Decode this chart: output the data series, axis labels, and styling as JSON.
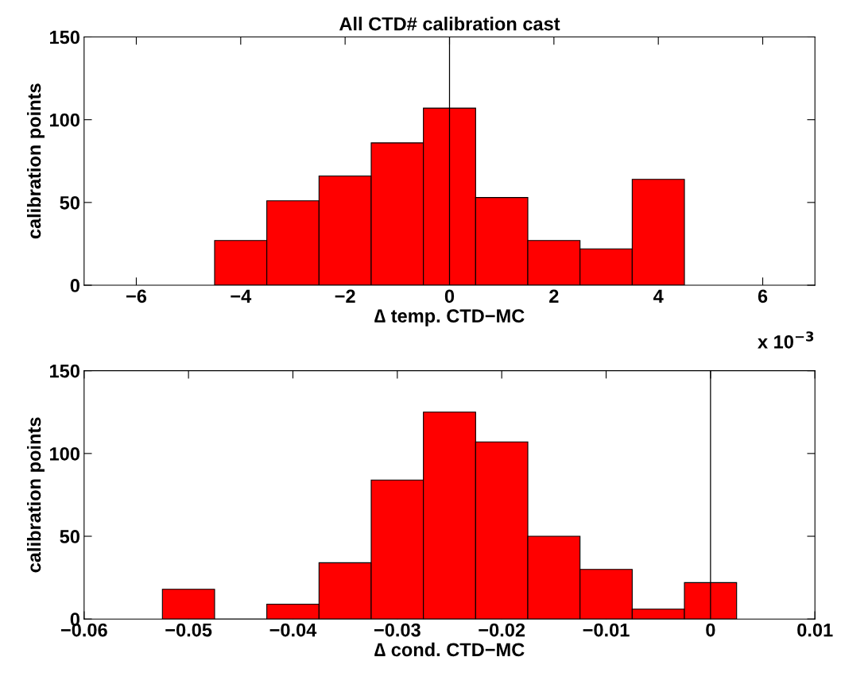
{
  "chart_data": [
    {
      "type": "histogram",
      "title": "All CTD# calibration cast",
      "xlabel": "∆ temp. CTD−MC",
      "ylabel": "calibration points",
      "color": "#ff0000",
      "bins": [
        -4.5,
        -3.5,
        -2.5,
        -1.5,
        -0.5,
        0.5,
        1.5,
        2.5,
        3.5,
        4.5
      ],
      "values": [
        27,
        51,
        66,
        86,
        107,
        53,
        27,
        22,
        64
      ],
      "xlim": [
        -7,
        7
      ],
      "xticks": [
        {
          "value": -6,
          "label": "−6"
        },
        {
          "value": -4,
          "label": "−4"
        },
        {
          "value": -2,
          "label": "−2"
        },
        0,
        2,
        4,
        6
      ],
      "ylim": [
        0,
        150
      ],
      "yticks": [
        0,
        50,
        100,
        150
      ],
      "ref_lines": [
        {
          "axis": "x",
          "value": 0,
          "color": "#000000"
        }
      ],
      "annotations": [
        "x 10$^{−3}$"
      ]
    },
    {
      "type": "histogram",
      "xlabel": "∆ cond. CTD−MC",
      "ylabel": "calibration points",
      "color": "#ff0000",
      "bins": [
        -0.0525,
        -0.0475,
        -0.0425,
        -0.0375,
        -0.0325,
        -0.0275,
        -0.0225,
        -0.0175,
        -0.0125,
        -0.0075,
        -0.0025,
        0.0025
      ],
      "values": [
        18,
        0,
        9,
        34,
        84,
        125,
        107,
        50,
        30,
        6,
        22
      ],
      "xlim": [
        -0.06,
        0.01
      ],
      "xticks": [
        {
          "value": -0.06,
          "label": "−0.06"
        },
        {
          "value": -0.05,
          "label": "−0.05"
        },
        {
          "value": -0.04,
          "label": "−0.04"
        },
        {
          "value": -0.03,
          "label": "−0.03"
        },
        {
          "value": -0.02,
          "label": "−0.02"
        },
        {
          "value": -0.01,
          "label": "−0.01"
        },
        {
          "value": 0,
          "label": "0"
        },
        {
          "value": 0.01,
          "label": "0.01"
        }
      ],
      "ylim": [
        0,
        150
      ],
      "yticks": [
        0,
        50,
        100,
        150
      ],
      "ref_lines": [
        {
          "axis": "x",
          "value": 0,
          "color": "#000000"
        }
      ]
    }
  ]
}
